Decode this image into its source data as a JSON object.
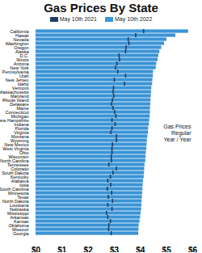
{
  "chart_data": {
    "type": "bar",
    "orientation": "horizontal",
    "title": "Gas Prices By State",
    "annotation": "Gas Prices\nRegular\nYear / Year",
    "legend": "top",
    "grid": false,
    "categories": [
      "California",
      "Hawaii",
      "Nevada",
      "Washington",
      "Oregon",
      "Alaska",
      "D.C.",
      "Illinois",
      "Arizona",
      "New York",
      "Pennsylvania",
      "Utah",
      "New Jersey",
      "Idaho",
      "Vermont",
      "Massachusetts",
      "Maryland",
      "Rhode Island",
      "Delaware",
      "Maine",
      "Connecticut",
      "Michigan",
      "New Hampshire",
      "Indiana",
      "Florida",
      "Virginia",
      "Montana",
      "Wyoming",
      "New Mexico",
      "West Virginia",
      "Ohio",
      "Wisconsin",
      "North Carolina",
      "Tennessee",
      "Colorado",
      "South Dakota",
      "Kentucky",
      "Alabama",
      "Iowa",
      "South Carolina",
      "Minnesota",
      "Texas",
      "North Dakota",
      "Louisiana",
      "Nebraska",
      "Mississippi",
      "Arkansas",
      "Kansas",
      "Oklahoma",
      "Missouri",
      "Georgia"
    ],
    "series": [
      {
        "name": "May 10th 2022",
        "type": "bar",
        "color": "#3a93d6",
        "values": [
          5.84,
          5.35,
          5.01,
          4.92,
          4.81,
          4.74,
          4.7,
          4.67,
          4.62,
          4.6,
          4.5,
          4.49,
          4.47,
          4.46,
          4.43,
          4.42,
          4.41,
          4.4,
          4.39,
          4.38,
          4.38,
          4.37,
          4.35,
          4.34,
          4.31,
          4.3,
          4.28,
          4.26,
          4.25,
          4.24,
          4.22,
          4.21,
          4.2,
          4.17,
          4.16,
          4.15,
          4.14,
          4.11,
          4.1,
          4.09,
          4.08,
          4.07,
          4.06,
          4.05,
          4.04,
          4.02,
          4.0,
          3.98,
          3.95,
          3.94,
          3.93
        ]
      },
      {
        "name": "May 10th 2021",
        "type": "tick",
        "color": "#1d3f66",
        "values": [
          4.12,
          3.82,
          3.53,
          3.56,
          3.45,
          3.43,
          3.18,
          3.2,
          3.1,
          3.04,
          3.13,
          3.43,
          3.0,
          3.39,
          2.97,
          2.95,
          2.98,
          2.93,
          2.89,
          2.95,
          3.01,
          3.06,
          2.91,
          3.03,
          2.91,
          2.87,
          3.08,
          3.08,
          2.93,
          2.91,
          2.91,
          2.88,
          2.89,
          2.79,
          3.08,
          2.95,
          2.85,
          2.75,
          2.86,
          2.73,
          2.9,
          2.77,
          2.93,
          2.75,
          2.91,
          2.7,
          2.75,
          2.85,
          2.79,
          2.78,
          2.88
        ]
      }
    ],
    "xlim": [
      0,
      6
    ],
    "xticks": [
      {
        "value": 0,
        "label": "$0"
      },
      {
        "value": 1,
        "label": "$1"
      },
      {
        "value": 2,
        "label": "$2"
      },
      {
        "value": 3,
        "label": "$3"
      },
      {
        "value": 4,
        "label": "$4"
      },
      {
        "value": 5,
        "label": "$5"
      },
      {
        "value": 6,
        "label": "$6"
      }
    ]
  }
}
